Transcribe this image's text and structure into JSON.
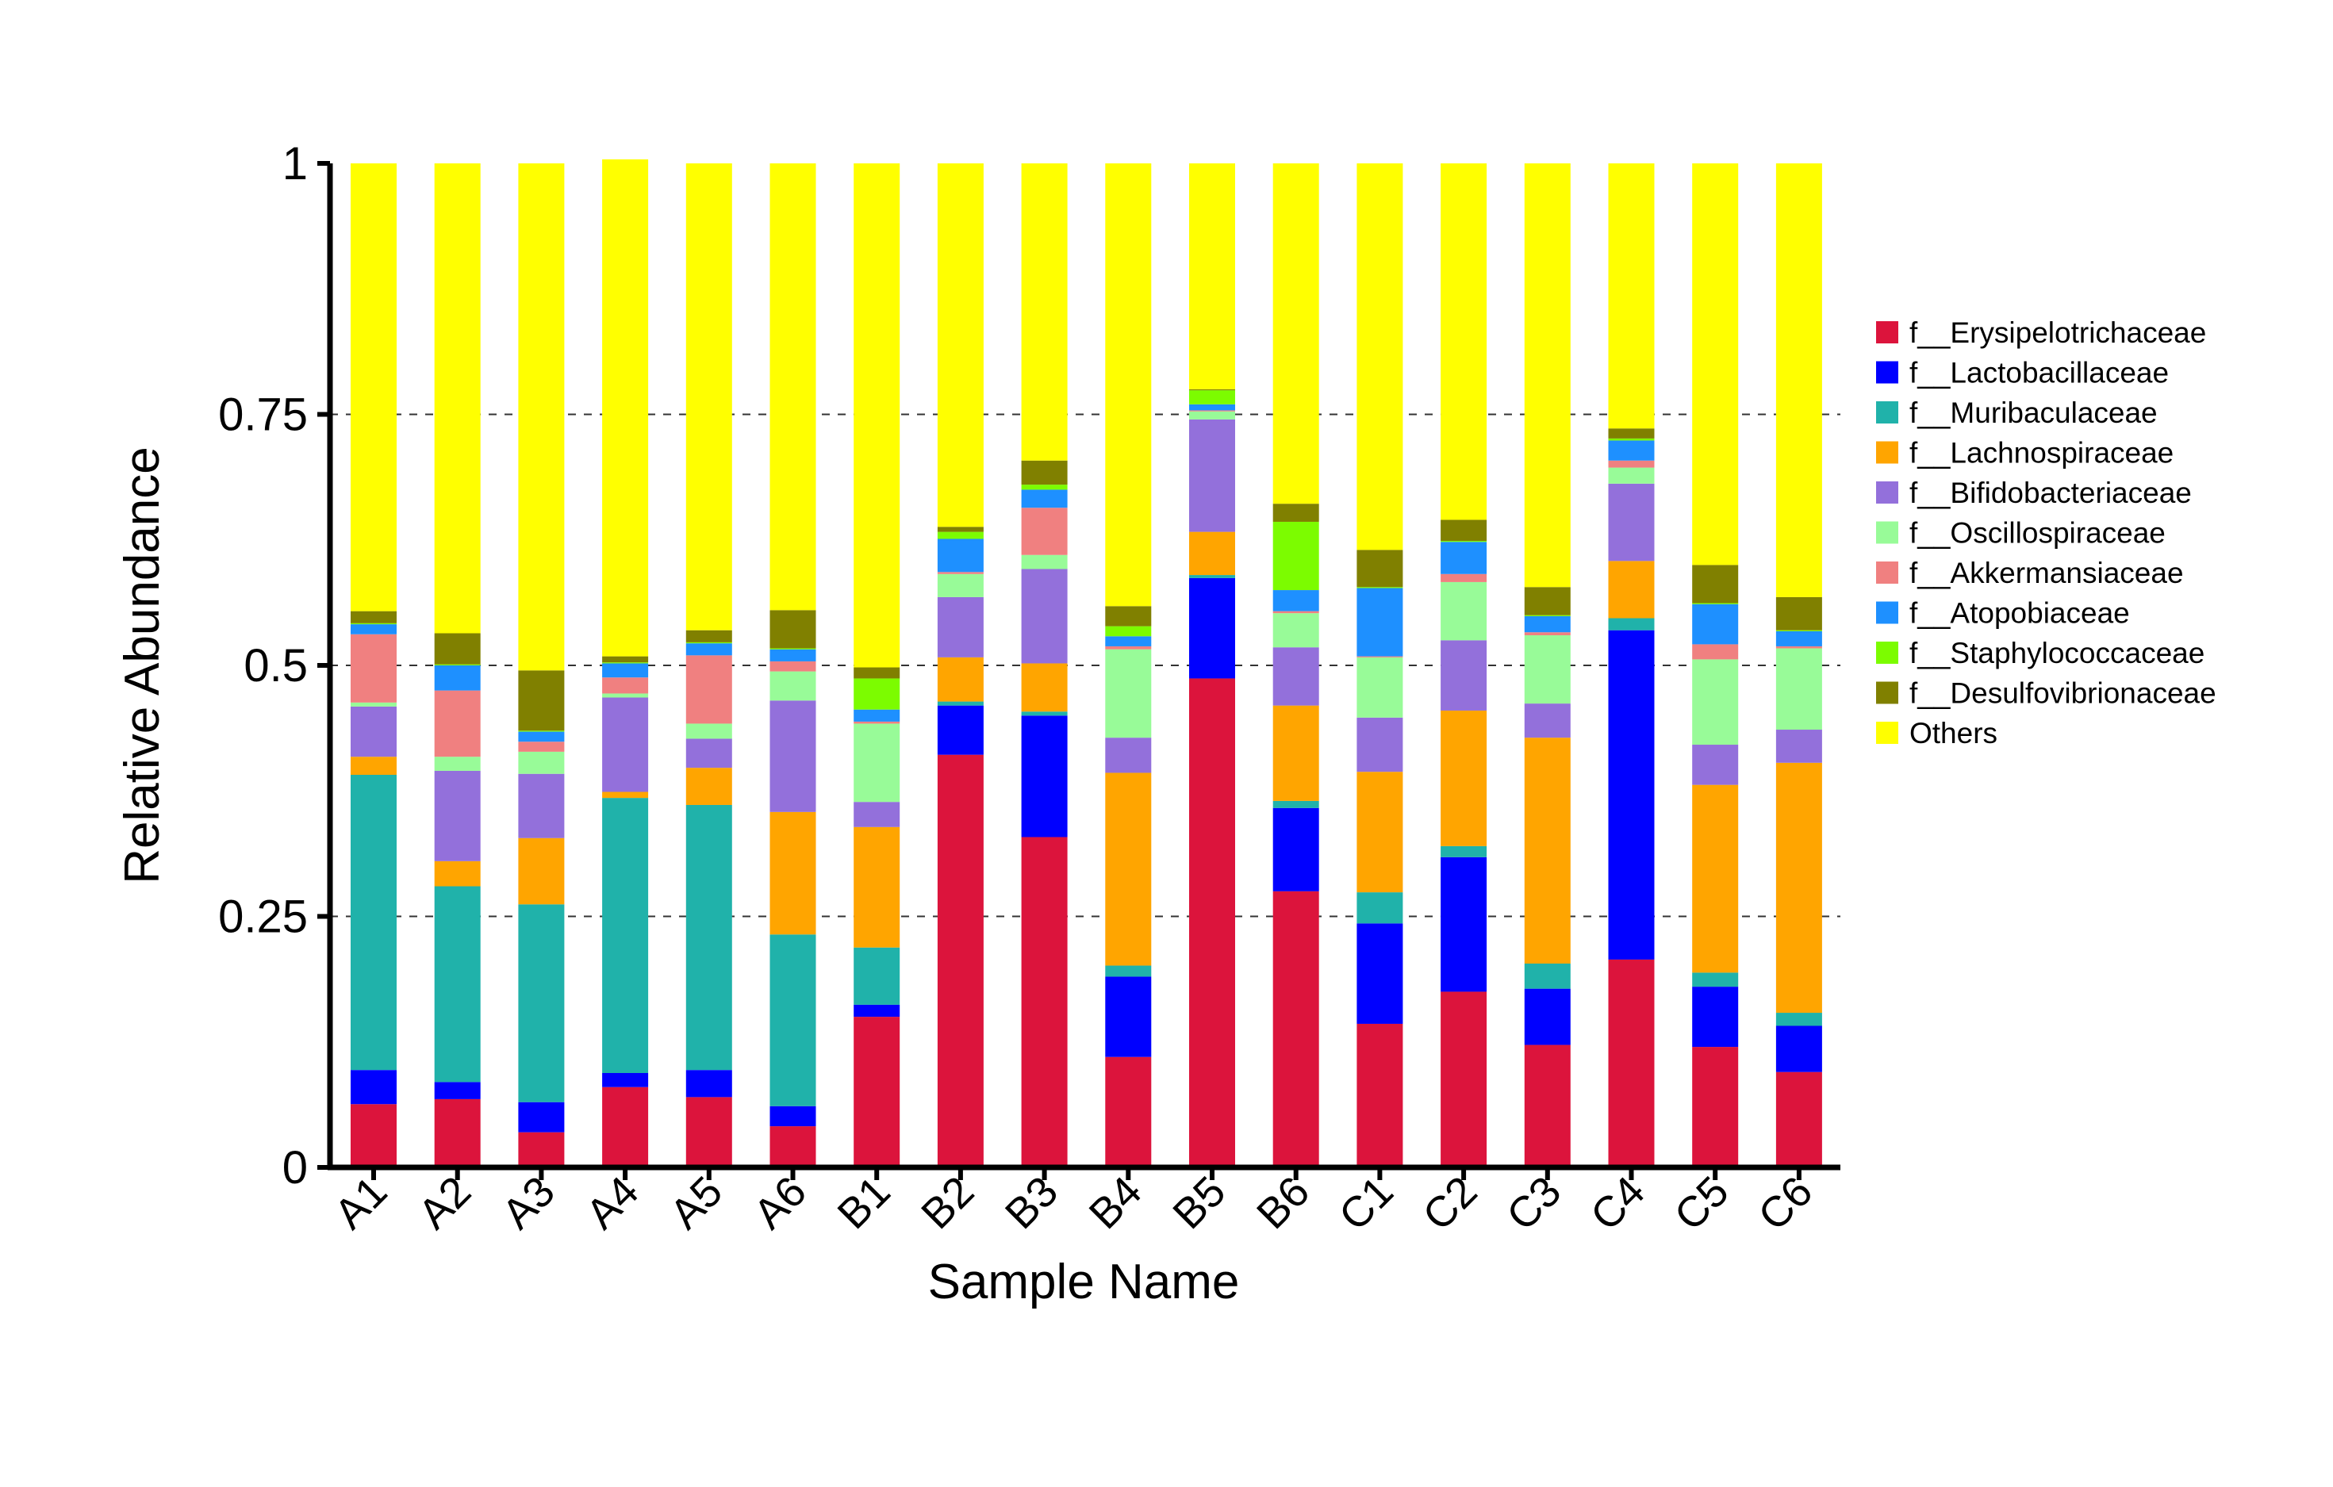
{
  "chart_data": {
    "type": "bar",
    "stacked": true,
    "xlabel": "Sample Name",
    "ylabel": "Relative Abundance",
    "ylim": [
      0,
      1
    ],
    "yticks": [
      0,
      0.25,
      0.5,
      0.75,
      1
    ],
    "ytick_labels": [
      "0",
      "0.25",
      "0.5",
      "0.75",
      "1"
    ],
    "grid": "dashed horizontal lines at 0.25, 0.5, 0.75",
    "legend_position": "right",
    "categories": [
      "A1",
      "A2",
      "A3",
      "A4",
      "A5",
      "A6",
      "B1",
      "B2",
      "B3",
      "B4",
      "B5",
      "B6",
      "C1",
      "C2",
      "C3",
      "C4",
      "C5",
      "C6"
    ],
    "series": [
      {
        "name": "f__Erysipelotrichaceae",
        "color": "#dc143c",
        "values": [
          0.063,
          0.068,
          0.035,
          0.08,
          0.07,
          0.041,
          0.15,
          0.411,
          0.329,
          0.11,
          0.487,
          0.275,
          0.143,
          0.175,
          0.122,
          0.207,
          0.12,
          0.095
        ]
      },
      {
        "name": "f__Lactobacillaceae",
        "color": "#0000ff",
        "values": [
          0.034,
          0.017,
          0.03,
          0.014,
          0.027,
          0.02,
          0.012,
          0.049,
          0.121,
          0.08,
          0.1,
          0.083,
          0.1,
          0.134,
          0.056,
          0.328,
          0.06,
          0.046
        ]
      },
      {
        "name": "f__Muribaculaceae",
        "color": "#20b2aa",
        "values": [
          0.294,
          0.195,
          0.197,
          0.274,
          0.264,
          0.171,
          0.057,
          0.004,
          0.004,
          0.011,
          0.003,
          0.007,
          0.031,
          0.011,
          0.025,
          0.012,
          0.014,
          0.013
        ]
      },
      {
        "name": "f__Lachnospiraceae",
        "color": "#ffa500",
        "values": [
          0.018,
          0.025,
          0.066,
          0.006,
          0.037,
          0.122,
          0.12,
          0.044,
          0.048,
          0.192,
          0.043,
          0.095,
          0.12,
          0.135,
          0.225,
          0.057,
          0.187,
          0.249
        ]
      },
      {
        "name": "f__Bifidobacteriaceae",
        "color": "#9370db",
        "values": [
          0.05,
          0.09,
          0.064,
          0.094,
          0.029,
          0.111,
          0.025,
          0.06,
          0.094,
          0.035,
          0.112,
          0.058,
          0.054,
          0.07,
          0.034,
          0.077,
          0.04,
          0.033
        ]
      },
      {
        "name": "f__Oscillospiraceae",
        "color": "#98fb98",
        "values": [
          0.004,
          0.014,
          0.022,
          0.004,
          0.015,
          0.029,
          0.078,
          0.023,
          0.014,
          0.088,
          0.008,
          0.034,
          0.06,
          0.058,
          0.068,
          0.016,
          0.085,
          0.081
        ]
      },
      {
        "name": "f__Akkermansiaceae",
        "color": "#f08080",
        "values": [
          0.068,
          0.066,
          0.01,
          0.016,
          0.068,
          0.01,
          0.002,
          0.002,
          0.047,
          0.003,
          0.001,
          0.002,
          0.001,
          0.008,
          0.003,
          0.007,
          0.015,
          0.002
        ]
      },
      {
        "name": "f__Atopobiaceae",
        "color": "#1e90ff",
        "values": [
          0.01,
          0.025,
          0.01,
          0.014,
          0.012,
          0.012,
          0.012,
          0.033,
          0.018,
          0.01,
          0.006,
          0.021,
          0.068,
          0.032,
          0.016,
          0.02,
          0.04,
          0.015
        ]
      },
      {
        "name": "f__Staphylococcaceae",
        "color": "#7cfc00",
        "values": [
          0.001,
          0.001,
          0.001,
          0.001,
          0.001,
          0.001,
          0.031,
          0.007,
          0.005,
          0.01,
          0.014,
          0.068,
          0.001,
          0.001,
          0.001,
          0.002,
          0.001,
          0.001
        ]
      },
      {
        "name": "f__Desulfovibrionaceae",
        "color": "#808000",
        "values": [
          0.012,
          0.031,
          0.06,
          0.006,
          0.012,
          0.038,
          0.011,
          0.005,
          0.024,
          0.02,
          0.001,
          0.018,
          0.037,
          0.021,
          0.028,
          0.01,
          0.038,
          0.033
        ]
      },
      {
        "name": "Others",
        "color": "#ffff00",
        "values": [
          0.446,
          0.468,
          0.505,
          0.495,
          0.465,
          0.445,
          0.502,
          0.362,
          0.296,
          0.441,
          0.225,
          0.339,
          0.385,
          0.355,
          0.422,
          0.264,
          0.4,
          0.432
        ]
      }
    ]
  }
}
